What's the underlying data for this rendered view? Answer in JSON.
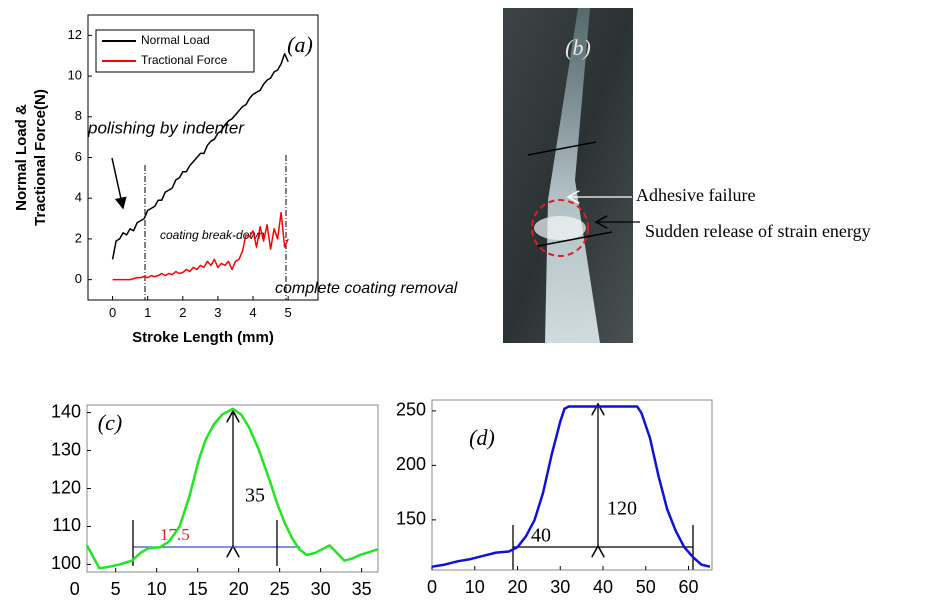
{
  "chart_data": [
    {
      "type": "line",
      "xlabel": "Stroke Length (mm)",
      "ylabel": [
        "Normal Load &",
        "Tractional Force(N)"
      ],
      "annotations": [
        "(a)",
        "polishing by indenter",
        "coating break-down",
        "complete coating removal"
      ],
      "xlim": [
        -0.7,
        5.85
      ],
      "ylim": [
        -1,
        13
      ],
      "xticks": [
        0,
        1,
        2,
        3,
        4,
        5
      ],
      "yticks": [
        0,
        2,
        4,
        6,
        8,
        10,
        12
      ],
      "legend": "upper left",
      "x": [
        0,
        0.1,
        0.2,
        0.3,
        0.4,
        0.5,
        0.6,
        0.7,
        0.8,
        0.9,
        1.0,
        1.1,
        1.2,
        1.3,
        1.4,
        1.5,
        1.6,
        1.7,
        1.8,
        1.9,
        2.0,
        2.1,
        2.2,
        2.3,
        2.4,
        2.5,
        2.6,
        2.7,
        2.8,
        2.9,
        3.0,
        3.1,
        3.2,
        3.3,
        3.4,
        3.5,
        3.6,
        3.7,
        3.8,
        3.9,
        4.0,
        4.1,
        4.2,
        4.3,
        4.4,
        4.5,
        4.6,
        4.7,
        4.8,
        4.9,
        5.0
      ],
      "series": [
        {
          "name": "Normal Load",
          "color": "#000000",
          "values": [
            1.0,
            1.9,
            2.0,
            2.3,
            2.2,
            2.5,
            2.4,
            2.8,
            2.9,
            3.0,
            3.4,
            3.5,
            3.6,
            3.9,
            3.9,
            4.3,
            4.4,
            4.5,
            4.9,
            5.0,
            5.3,
            5.3,
            5.6,
            5.8,
            6.0,
            6.2,
            6.2,
            6.6,
            6.8,
            6.9,
            7.2,
            7.3,
            7.6,
            7.8,
            7.9,
            8.1,
            8.3,
            8.5,
            8.6,
            8.9,
            9.1,
            9.2,
            9.3,
            9.6,
            9.8,
            9.9,
            10.2,
            10.3,
            10.6,
            11.1,
            10.7
          ]
        },
        {
          "name": "Tractional Force",
          "color": "#ff0000",
          "values": [
            0,
            0,
            0,
            0,
            0,
            0,
            0.05,
            0.1,
            0.1,
            0.15,
            0.1,
            0.2,
            0.15,
            0.2,
            0.3,
            0.2,
            0.3,
            0.25,
            0.4,
            0.3,
            0.35,
            0.5,
            0.4,
            0.6,
            0.5,
            0.7,
            0.6,
            0.9,
            0.7,
            1.0,
            0.6,
            0.8,
            0.7,
            0.9,
            0.5,
            0.9,
            1.0,
            1.4,
            2.2,
            2.1,
            2.4,
            1.6,
            2.6,
            1.9,
            2.7,
            1.5,
            2.5,
            2.0,
            3.3,
            1.6,
            2.0
          ]
        }
      ]
    },
    {
      "type": "line",
      "annotations": [
        "(c)",
        "35",
        "17.5"
      ],
      "xlim": [
        1.5,
        37
      ],
      "ylim": [
        98,
        142
      ],
      "xticks": [
        0,
        5,
        10,
        15,
        20,
        25,
        30,
        35
      ],
      "yticks": [
        100,
        110,
        120,
        130,
        140
      ],
      "x": [
        1.5,
        2.5,
        3,
        4,
        5.5,
        7,
        8,
        9,
        10.4,
        11.5,
        12.8,
        14,
        15.2,
        16,
        17,
        18,
        19.3,
        20.3,
        21.3,
        22.5,
        23.8,
        24.7,
        25.6,
        26.5,
        27.4,
        28.3,
        29.3,
        30.2,
        31.1,
        32,
        32.9,
        33.8,
        34.8,
        36,
        37
      ],
      "series": [
        {
          "name": null,
          "color": "#22e622",
          "values": [
            105,
            101,
            99,
            99.3,
            100,
            101,
            103,
            104.3,
            104.5,
            106,
            110,
            118,
            128,
            133,
            137,
            139.5,
            141,
            139.5,
            136,
            130,
            122,
            116,
            111,
            107,
            104,
            102.5,
            103,
            104,
            105,
            103,
            101,
            101.5,
            102.5,
            103.3,
            104
          ]
        }
      ]
    },
    {
      "type": "line",
      "annotations": [
        "(d)",
        "120",
        "40"
      ],
      "xlim": [
        0,
        65.5
      ],
      "ylim": [
        104,
        260
      ],
      "xticks": [
        0,
        10,
        20,
        30,
        40,
        50,
        60
      ],
      "yticks": [
        150,
        200,
        250
      ],
      "x": [
        0,
        3,
        6,
        9,
        12,
        15,
        18,
        20,
        22,
        24,
        26,
        28,
        30,
        31,
        32,
        35,
        40,
        45,
        48,
        49,
        51,
        53,
        55,
        57,
        59,
        61,
        63,
        65
      ],
      "series": [
        {
          "name": null,
          "color": "#1010e0",
          "values": [
            107,
            109,
            112,
            114,
            117,
            120,
            121,
            125,
            135,
            150,
            175,
            210,
            240,
            252,
            254,
            254,
            254,
            254,
            254,
            248,
            225,
            190,
            160,
            140,
            125,
            116,
            109,
            107
          ]
        }
      ]
    }
  ],
  "image": {
    "label": "(b)",
    "annotations": [
      "Adhesive failure",
      "Sudden release of strain energy"
    ]
  }
}
